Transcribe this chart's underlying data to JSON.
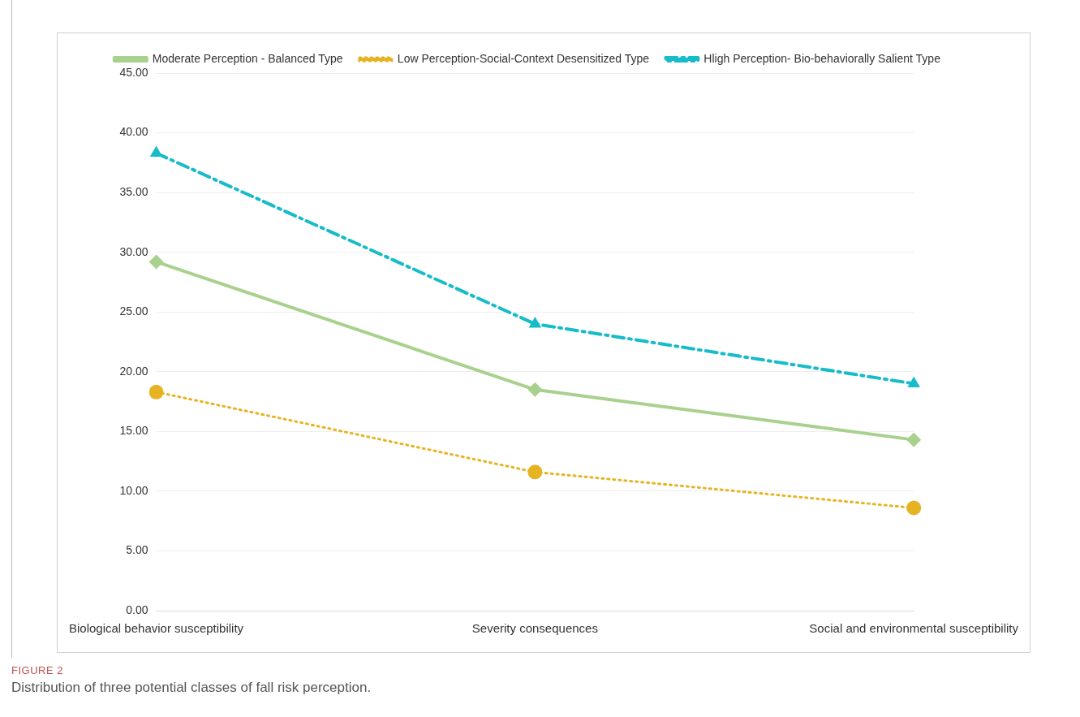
{
  "chart_data": {
    "type": "line",
    "categories": [
      "Biological behavior susceptibility",
      "Severity consequences",
      "Social and environmental susceptibility"
    ],
    "series": [
      {
        "name": "Moderate Perception - Balanced Type",
        "color": "#a9d18e",
        "values": [
          29.2,
          18.5,
          14.3
        ],
        "marker": "diamond",
        "line_style": "solid"
      },
      {
        "name": "Low Perception-Social-Context Desensitized Type",
        "color": "#e6b422",
        "values": [
          18.3,
          11.6,
          8.6
        ],
        "marker": "circle",
        "line_style": "dotted"
      },
      {
        "name": "Hligh Perception- Bio-behaviorally Salient Type",
        "color": "#17bcc9",
        "values": [
          38.3,
          24.0,
          19.0
        ],
        "marker": "triangle",
        "line_style": "dashed"
      }
    ],
    "ylim": [
      0,
      45
    ],
    "yticks": [
      {
        "value": 0,
        "label": "0.00"
      },
      {
        "value": 5,
        "label": "5.00"
      },
      {
        "value": 10,
        "label": "10.00"
      },
      {
        "value": 15,
        "label": "15.00"
      },
      {
        "value": 20,
        "label": "20.00"
      },
      {
        "value": 25,
        "label": "25.00"
      },
      {
        "value": 30,
        "label": "30.00"
      },
      {
        "value": 35,
        "label": "35.00"
      },
      {
        "value": 40,
        "label": "40.00"
      },
      {
        "value": 45,
        "label": "45.00"
      }
    ],
    "grid": "y",
    "legend": "top",
    "annotations": [
      "FIGURE 2",
      "Distribution of three potential classes of fall risk perception."
    ]
  }
}
